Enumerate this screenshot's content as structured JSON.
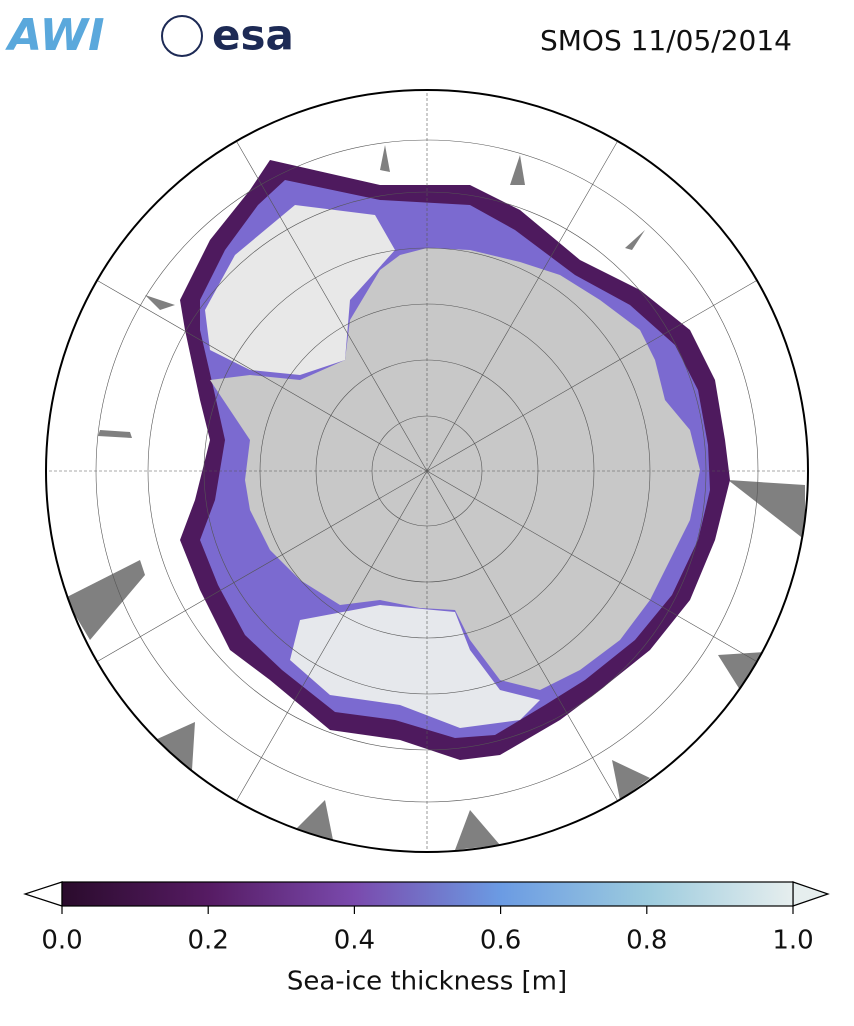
{
  "header": {
    "logos": [
      "AWI",
      "esa"
    ],
    "title": "SMOS 11/05/2014"
  },
  "colorbar": {
    "label": "Sea-ice thickness [m]",
    "lim": [
      0,
      1
    ],
    "ticks": [
      {
        "value": 0,
        "label": "0.0"
      },
      {
        "value": 0.2,
        "label": "0.2"
      },
      {
        "value": 0.4,
        "label": "0.4"
      },
      {
        "value": 0.6,
        "label": "0.6"
      },
      {
        "value": 0.8,
        "label": "0.8"
      },
      {
        "value": 1,
        "label": "1.0"
      }
    ]
  }
}
